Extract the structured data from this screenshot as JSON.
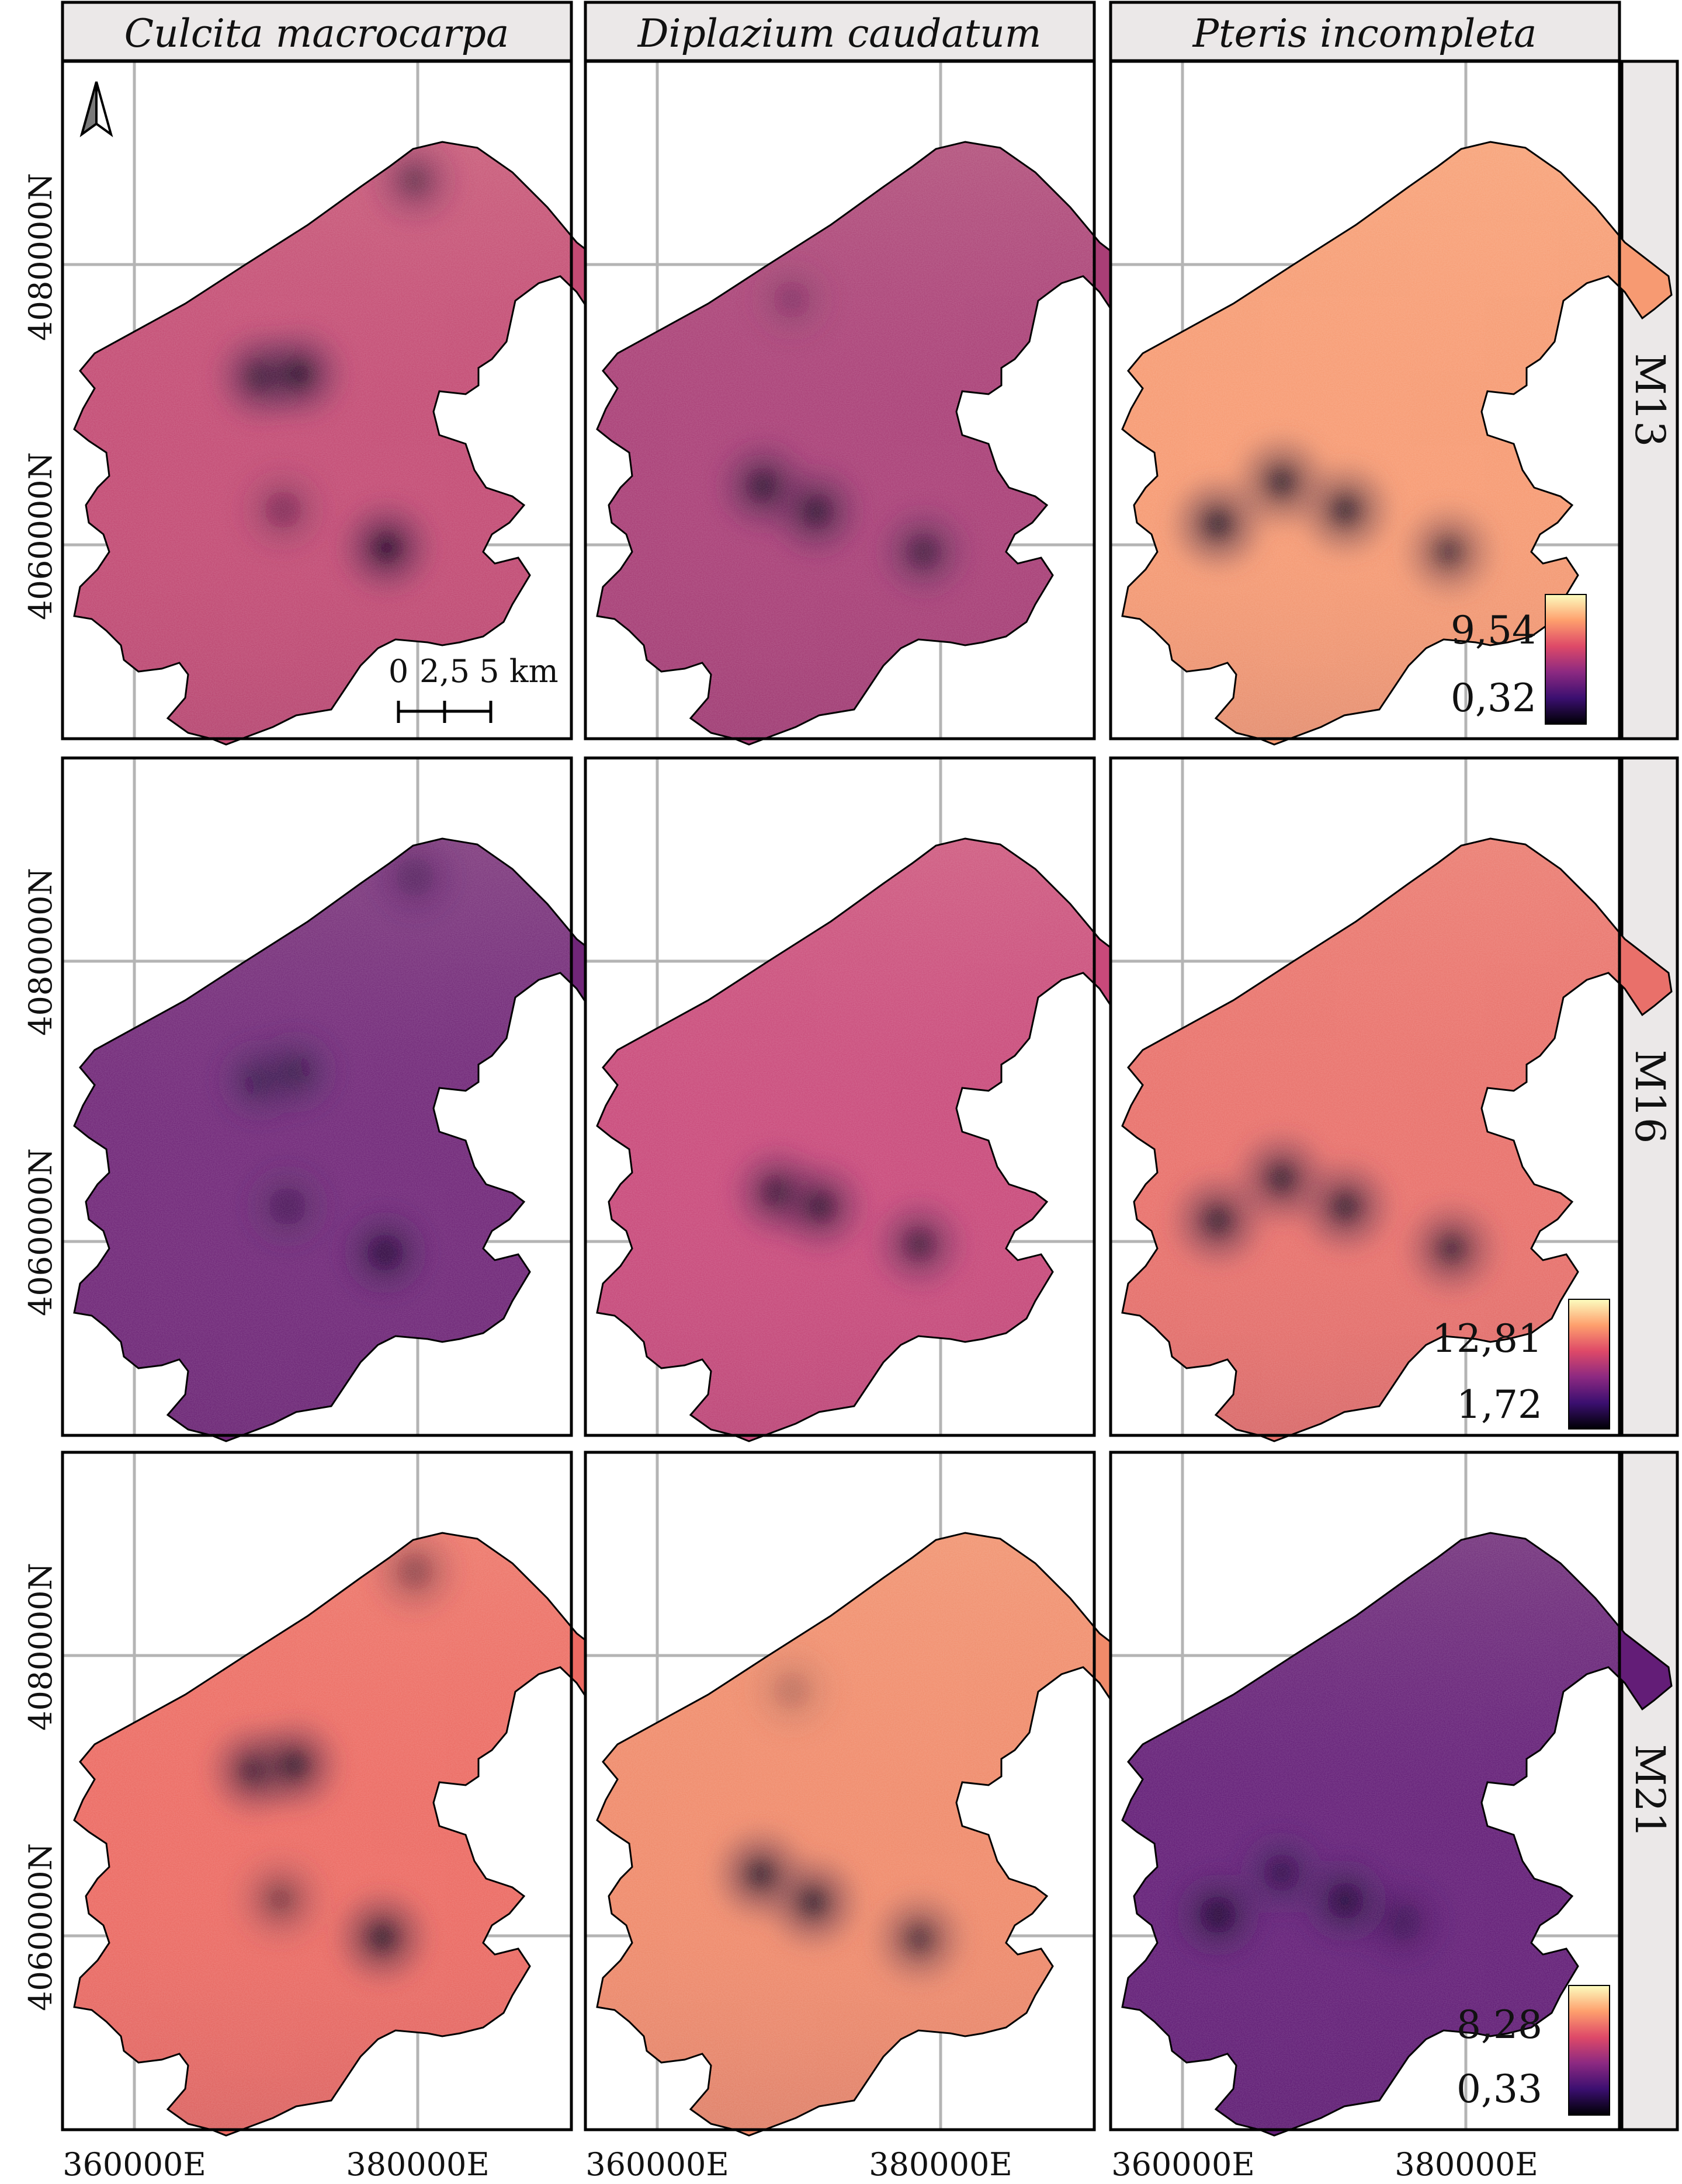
{
  "columns": [
    {
      "name": "Culcita macrocarpa"
    },
    {
      "name": "Diplazium caudatum"
    },
    {
      "name": "Pteris incompleta"
    }
  ],
  "rows": [
    {
      "name": "M13",
      "legend": {
        "max": "9,54",
        "min": "0,32"
      }
    },
    {
      "name": "M16",
      "legend": {
        "max": "12,81",
        "min": "1,72"
      }
    },
    {
      "name": "M21",
      "legend": {
        "max": "8,28",
        "min": "0,33"
      }
    }
  ],
  "x_ticks": [
    "360000E",
    "380000E"
  ],
  "y_ticks": [
    "4060000N",
    "4080000N"
  ],
  "scale_bar": {
    "labels": [
      "0",
      "2,5",
      "5 km"
    ]
  },
  "north_arrow": "north-arrow-icon",
  "colormap": [
    "#000004",
    "#3b0f70",
    "#8c2981",
    "#de4968",
    "#fe9f6d",
    "#fcfdbf"
  ],
  "panels": [
    {
      "row": 0,
      "col": 0,
      "base": "#c34a73",
      "hotspots": [
        {
          "x": 369000,
          "y": 4072000,
          "strength": 0.85
        },
        {
          "x": 371600,
          "y": 4072200,
          "strength": 0.85
        },
        {
          "x": 377800,
          "y": 4059800,
          "strength": 0.9
        },
        {
          "x": 370500,
          "y": 4062500,
          "strength": 0.35
        },
        {
          "x": 379800,
          "y": 4086000,
          "strength": 0.45
        }
      ]
    },
    {
      "row": 0,
      "col": 1,
      "base": "#a93e76",
      "hotspots": [
        {
          "x": 367500,
          "y": 4064200,
          "strength": 0.8
        },
        {
          "x": 371200,
          "y": 4062400,
          "strength": 0.8
        },
        {
          "x": 378800,
          "y": 4059500,
          "strength": 0.65
        },
        {
          "x": 369500,
          "y": 4077500,
          "strength": 0.2
        }
      ]
    },
    {
      "row": 0,
      "col": 2,
      "base": "#f79a72",
      "hotspots": [
        {
          "x": 362500,
          "y": 4061500,
          "strength": 0.9
        },
        {
          "x": 367000,
          "y": 4064500,
          "strength": 0.85
        },
        {
          "x": 371500,
          "y": 4062500,
          "strength": 0.85
        },
        {
          "x": 378800,
          "y": 4059500,
          "strength": 0.7
        }
      ]
    },
    {
      "row": 1,
      "col": 0,
      "base": "#702678",
      "hotspots": [
        {
          "x": 368800,
          "y": 4071500,
          "strength": 0.45
        },
        {
          "x": 371400,
          "y": 4072100,
          "strength": 0.45
        },
        {
          "x": 377700,
          "y": 4059200,
          "strength": 0.7
        },
        {
          "x": 370800,
          "y": 4062500,
          "strength": 0.35
        },
        {
          "x": 379800,
          "y": 4086000,
          "strength": 0.3
        }
      ]
    },
    {
      "row": 1,
      "col": 1,
      "base": "#c9497a",
      "hotspots": [
        {
          "x": 368500,
          "y": 4063500,
          "strength": 0.8
        },
        {
          "x": 371500,
          "y": 4062500,
          "strength": 0.8
        },
        {
          "x": 378500,
          "y": 4059800,
          "strength": 0.7
        }
      ]
    },
    {
      "row": 1,
      "col": 2,
      "base": "#e9706a",
      "hotspots": [
        {
          "x": 362500,
          "y": 4061500,
          "strength": 0.85
        },
        {
          "x": 367000,
          "y": 4064500,
          "strength": 0.85
        },
        {
          "x": 371500,
          "y": 4062500,
          "strength": 0.85
        },
        {
          "x": 379000,
          "y": 4059500,
          "strength": 0.75
        }
      ]
    },
    {
      "row": 2,
      "col": 0,
      "base": "#ec6a62",
      "hotspots": [
        {
          "x": 368500,
          "y": 4071800,
          "strength": 0.85
        },
        {
          "x": 371300,
          "y": 4072200,
          "strength": 0.85
        },
        {
          "x": 377500,
          "y": 4059900,
          "strength": 0.9
        },
        {
          "x": 370300,
          "y": 4062600,
          "strength": 0.45
        },
        {
          "x": 379800,
          "y": 4086000,
          "strength": 0.4
        }
      ]
    },
    {
      "row": 2,
      "col": 1,
      "base": "#f08a6a",
      "hotspots": [
        {
          "x": 367300,
          "y": 4064400,
          "strength": 0.85
        },
        {
          "x": 371000,
          "y": 4062400,
          "strength": 0.85
        },
        {
          "x": 378500,
          "y": 4059800,
          "strength": 0.7
        },
        {
          "x": 369500,
          "y": 4077500,
          "strength": 0.2
        }
      ]
    },
    {
      "row": 2,
      "col": 2,
      "base": "#631d77",
      "hotspots": [
        {
          "x": 362500,
          "y": 4061500,
          "strength": 0.8
        },
        {
          "x": 367000,
          "y": 4064500,
          "strength": 0.5
        },
        {
          "x": 371500,
          "y": 4062500,
          "strength": 0.7
        },
        {
          "x": 375500,
          "y": 4061000,
          "strength": 0.4
        }
      ]
    }
  ]
}
